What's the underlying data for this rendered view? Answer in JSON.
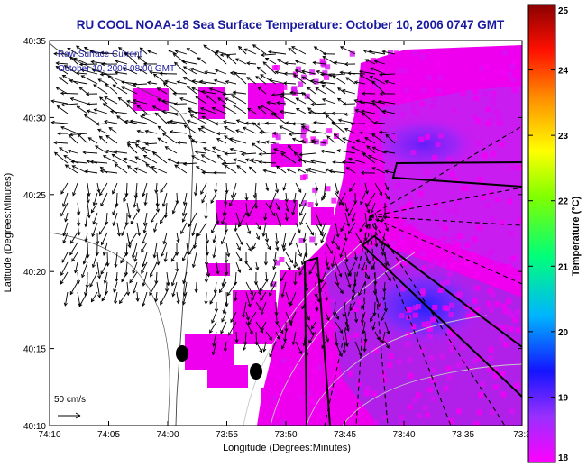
{
  "chart_data": {
    "type": "heatmap",
    "title": "RU COOL  NOAA-18  Sea Surface Temperature:  October 10, 2006 0747 GMT",
    "xlabel": "Longitude (Degrees:Minutes)",
    "ylabel": "Latitude (Degrees:Minutes)",
    "x_ticks": [
      "74:10",
      "74:05",
      "74:00",
      "73:55",
      "73:50",
      "73:45",
      "73:40",
      "73:35",
      "73:3"
    ],
    "y_ticks": [
      "40:35",
      "40:30",
      "40:25",
      "40:20",
      "40:15",
      "40:10"
    ],
    "xlim_minutes_west": [
      10,
      33
    ],
    "ylim_minutes_north": [
      10,
      35
    ],
    "colorbar": {
      "label": "Temperature (°C)",
      "ticks": [
        "25",
        "24",
        "23",
        "22",
        "21",
        "20",
        "19",
        "18"
      ],
      "range": [
        18,
        25
      ],
      "colors": [
        "#ff00ff",
        "#1010ff",
        "#00c8ff",
        "#00ff60",
        "#ffff00",
        "#ff8000",
        "#ff0000",
        "#8b0000"
      ]
    },
    "legend": {
      "line1": "Raw Surface Current",
      "line2": "October 10, 2006 08:00 GMT",
      "scale_label": "50 cm/s"
    }
  }
}
